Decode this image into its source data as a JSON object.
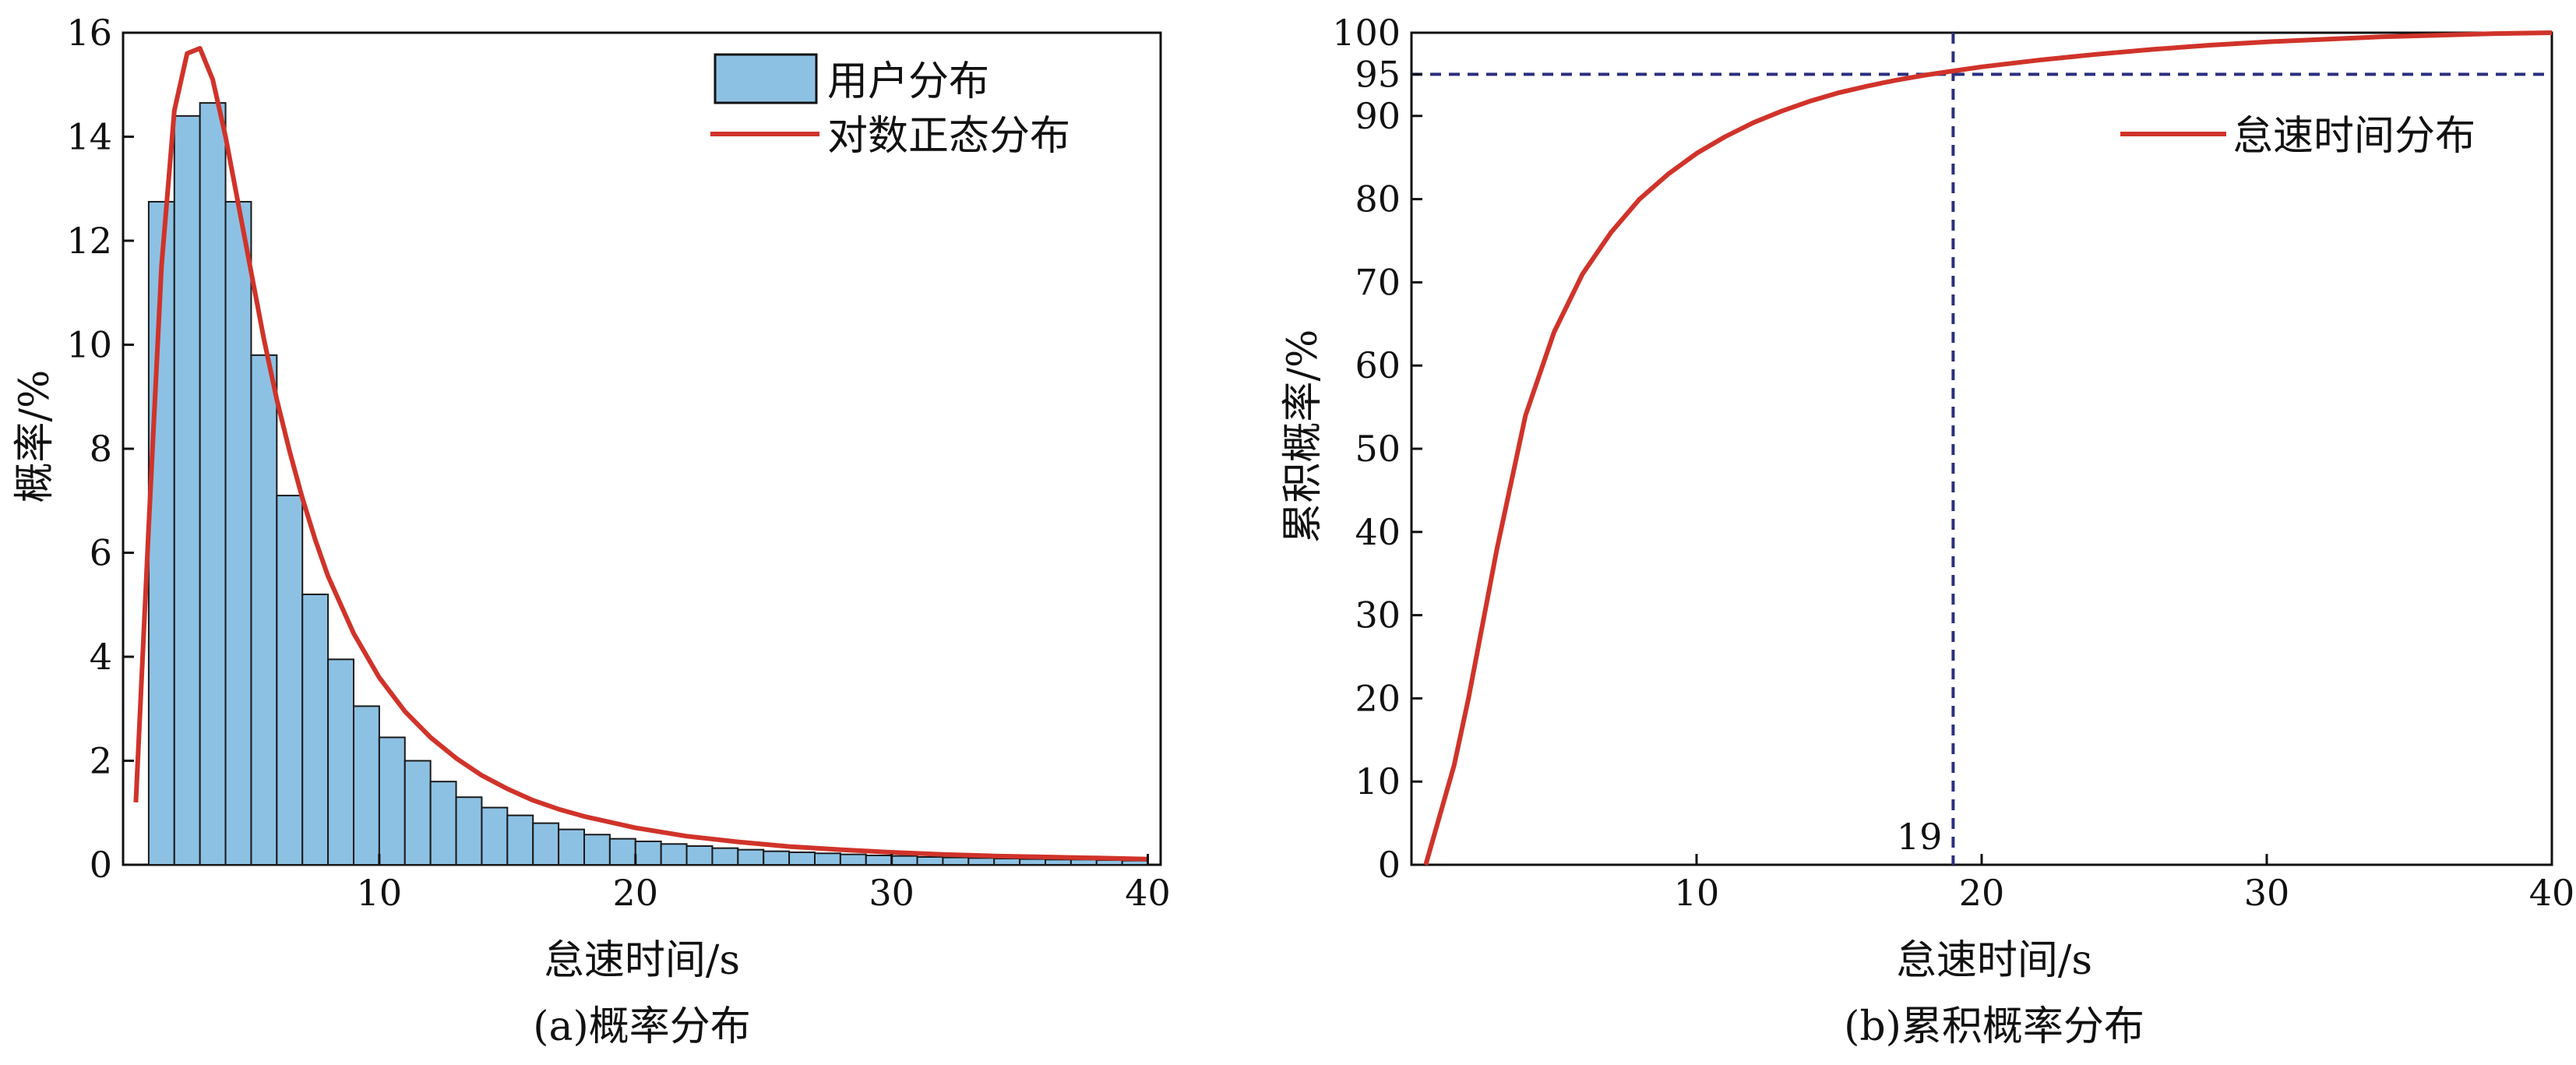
{
  "chart_data": [
    {
      "type": "bar",
      "caption": "(a)概率分布",
      "xlabel": "怠速时间/s",
      "ylabel": "概率/%",
      "xlim": [
        0,
        40.5
      ],
      "ylim": [
        0,
        16
      ],
      "xticks": [
        10,
        20,
        30,
        40
      ],
      "yticks": [
        0,
        2,
        4,
        6,
        8,
        10,
        12,
        14,
        16
      ],
      "legend_position": "top-right",
      "bar_color": "#8DC1E3",
      "bar_edge_color": "#1a1a1a",
      "series": [
        {
          "name": "用户分布",
          "kind": "bar",
          "x": [
            1.5,
            2.5,
            3.5,
            4.5,
            5.5,
            6.5,
            7.5,
            8.5,
            9.5,
            10.5,
            11.5,
            12.5,
            13.5,
            14.5,
            15.5,
            16.5,
            17.5,
            18.5,
            19.5,
            20.5,
            21.5,
            22.5,
            23.5,
            24.5,
            25.5,
            26.5,
            27.5,
            28.5,
            29.5,
            30.5,
            31.5,
            32.5,
            33.5,
            34.5,
            35.5,
            36.5,
            37.5,
            38.5,
            39.5
          ],
          "values": [
            12.75,
            14.4,
            14.65,
            12.75,
            9.8,
            7.1,
            5.2,
            3.95,
            3.05,
            2.45,
            2.0,
            1.6,
            1.3,
            1.1,
            0.95,
            0.8,
            0.68,
            0.58,
            0.5,
            0.45,
            0.4,
            0.36,
            0.32,
            0.29,
            0.26,
            0.24,
            0.22,
            0.2,
            0.18,
            0.17,
            0.15,
            0.14,
            0.13,
            0.12,
            0.11,
            0.1,
            0.1,
            0.09,
            0.08
          ]
        },
        {
          "name": "对数正态分布",
          "kind": "line",
          "color": "#D0332A",
          "x": [
            0.5,
            1.0,
            1.5,
            2.0,
            2.5,
            3.0,
            3.5,
            4.0,
            4.5,
            5.0,
            5.5,
            6.0,
            6.5,
            7.0,
            7.5,
            8.0,
            9.0,
            10.0,
            11.0,
            12.0,
            13.0,
            14.0,
            15.0,
            16.0,
            17.0,
            18.0,
            20.0,
            22.0,
            24.0,
            26.0,
            28.0,
            30.0,
            32.0,
            34.0,
            36.0,
            38.0,
            40.0
          ],
          "y": [
            1.2,
            6.5,
            11.5,
            14.5,
            15.6,
            15.7,
            15.1,
            14.0,
            12.7,
            11.4,
            10.1,
            8.95,
            7.95,
            7.05,
            6.25,
            5.55,
            4.45,
            3.6,
            2.95,
            2.45,
            2.05,
            1.72,
            1.46,
            1.24,
            1.07,
            0.93,
            0.71,
            0.55,
            0.44,
            0.35,
            0.29,
            0.24,
            0.2,
            0.17,
            0.15,
            0.13,
            0.11
          ]
        }
      ]
    },
    {
      "type": "line",
      "caption": "(b)累积概率分布",
      "xlabel": "怠速时间/s",
      "ylabel": "累积概率/%",
      "xlim": [
        0,
        40
      ],
      "ylim": [
        0,
        100
      ],
      "xticks": [
        10,
        20,
        30,
        40
      ],
      "yticks": [
        0,
        10,
        20,
        30,
        40,
        50,
        60,
        70,
        80,
        90,
        95,
        100
      ],
      "legend_position": "top-right",
      "reference_lines": {
        "y": 95,
        "x": 19,
        "x_label": "19",
        "color": "#2B2F7E"
      },
      "series": [
        {
          "name": "怠速时间分布",
          "color": "#D0332A",
          "x": [
            0.5,
            1.0,
            1.5,
            2.0,
            3.0,
            4.0,
            5.0,
            6.0,
            7.0,
            8.0,
            9.0,
            10.0,
            11.0,
            12.0,
            13.0,
            14.0,
            15.0,
            16.0,
            17.0,
            18.0,
            19.0,
            20.0,
            22.0,
            24.0,
            26.0,
            28.0,
            30.0,
            32.0,
            34.0,
            36.0,
            38.0,
            40.0
          ],
          "y": [
            0,
            6,
            12,
            20,
            38,
            54,
            64,
            71,
            76,
            80,
            83,
            85.5,
            87.5,
            89.2,
            90.6,
            91.8,
            92.8,
            93.6,
            94.3,
            94.9,
            95.4,
            95.9,
            96.7,
            97.4,
            98.0,
            98.5,
            98.9,
            99.2,
            99.5,
            99.7,
            99.9,
            100
          ]
        }
      ]
    }
  ]
}
